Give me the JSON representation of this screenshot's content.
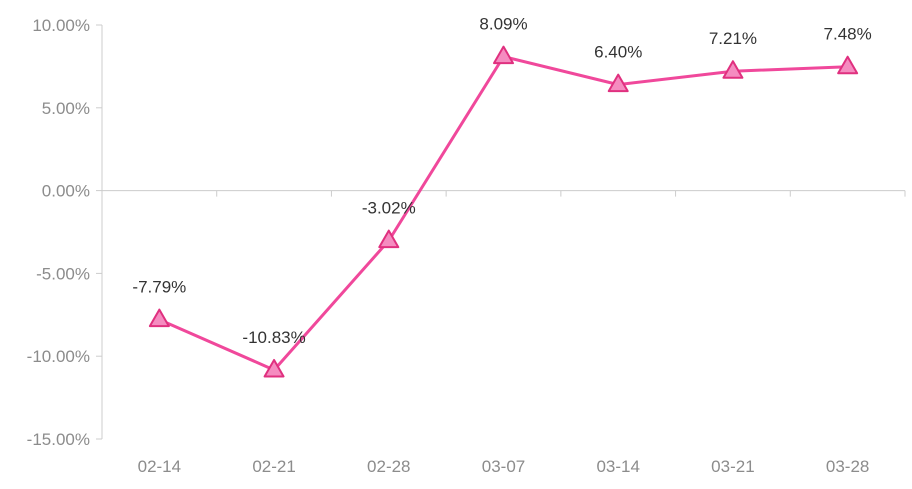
{
  "chart_data": {
    "type": "line",
    "categories": [
      "02-14",
      "02-21",
      "02-28",
      "03-07",
      "03-14",
      "03-21",
      "03-28"
    ],
    "series": [
      {
        "values": [
          -7.79,
          -10.83,
          -3.02,
          8.09,
          6.4,
          7.21,
          7.48
        ],
        "labels": [
          "-7.79%",
          "-10.83%",
          "-3.02%",
          "8.09%",
          "6.40%",
          "7.21%",
          "7.48%"
        ]
      }
    ],
    "ylim": [
      -15,
      10
    ],
    "yticks": [
      10,
      5,
      0,
      -5,
      -10,
      -15
    ],
    "ytick_labels": [
      "10.00%",
      "5.00%",
      "0.00%",
      "-5.00%",
      "-10.00%",
      "-15.00%"
    ],
    "grid": false,
    "marker": "triangle",
    "colors": {
      "line": "#f0489b",
      "marker_fill": "#f58cc0",
      "marker_stroke": "#e0307f",
      "axis": "#cccccc"
    }
  }
}
